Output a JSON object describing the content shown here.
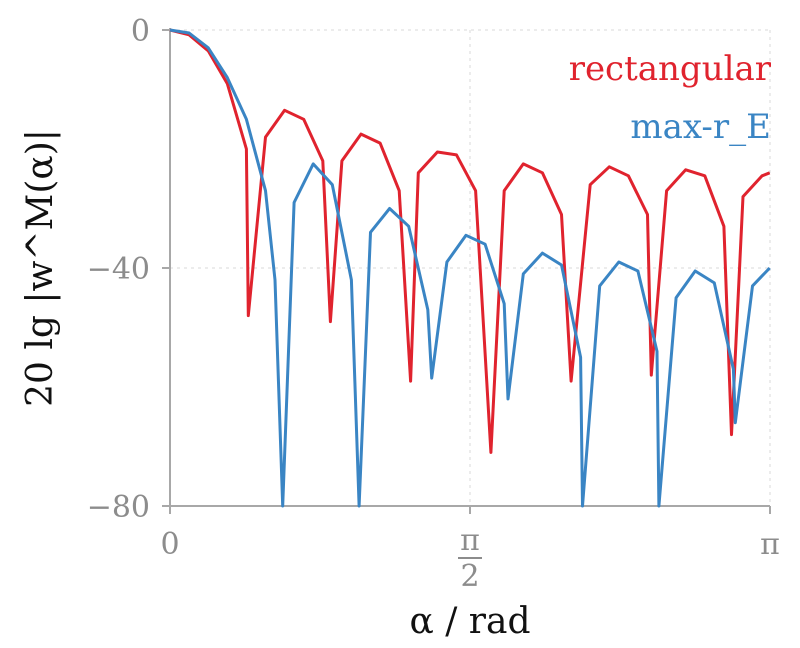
{
  "chart_data": {
    "type": "line",
    "xlabel": "α / rad",
    "ylabel": "20 lg |w^M(α)|",
    "xlim": [
      0,
      3.14159
    ],
    "ylim": [
      -80,
      0
    ],
    "x_ticks": [
      {
        "value": 0,
        "label": "0"
      },
      {
        "value": 1.5708,
        "label_num": "π",
        "label_den": "2"
      },
      {
        "value": 3.14159,
        "label": "π"
      }
    ],
    "y_ticks": [
      {
        "value": 0,
        "label": "0"
      },
      {
        "value": -40,
        "label": "−40"
      },
      {
        "value": -80,
        "label": "−80"
      }
    ],
    "grid": true,
    "legend_position": "top-right",
    "series": [
      {
        "name": "rectangular",
        "color": "#e0232e",
        "x": [
          0,
          0.1,
          0.2,
          0.3,
          0.4,
          0.41,
          0.5,
          0.6,
          0.7,
          0.8,
          0.84,
          0.9,
          1.0,
          1.1,
          1.2,
          1.26,
          1.3,
          1.4,
          1.5,
          1.6,
          1.68,
          1.75,
          1.85,
          1.95,
          2.05,
          2.1,
          2.2,
          2.3,
          2.4,
          2.5,
          2.52,
          2.6,
          2.7,
          2.8,
          2.9,
          2.94,
          3.0,
          3.1,
          3.14
        ],
        "y": [
          0,
          -0.8,
          -3.5,
          -9,
          -20,
          -48,
          -18,
          -13.5,
          -15,
          -22,
          -49,
          -22,
          -17.5,
          -19,
          -27,
          -59,
          -24,
          -20.5,
          -21,
          -27,
          -71,
          -27,
          -22.5,
          -24,
          -31,
          -59,
          -26,
          -23,
          -24.5,
          -31,
          -58,
          -27,
          -23.5,
          -24.5,
          -33,
          -68,
          -28,
          -24.5,
          -24
        ]
      },
      {
        "name": "max-r_E",
        "color": "#3a85c4",
        "x": [
          0,
          0.1,
          0.2,
          0.3,
          0.4,
          0.5,
          0.55,
          0.59,
          0.59,
          0.65,
          0.75,
          0.85,
          0.95,
          0.99,
          0.99,
          1.05,
          1.15,
          1.25,
          1.35,
          1.37,
          1.45,
          1.55,
          1.65,
          1.75,
          1.77,
          1.85,
          1.95,
          2.05,
          2.15,
          2.16,
          2.16,
          2.25,
          2.35,
          2.45,
          2.55,
          2.56,
          2.56,
          2.65,
          2.75,
          2.85,
          2.95,
          2.96,
          3.05,
          3.14
        ],
        "y": [
          0,
          -0.5,
          -3,
          -8,
          -15,
          -27,
          -42,
          -80,
          -80,
          -29,
          -22.5,
          -26,
          -42,
          -80,
          -80,
          -34,
          -30,
          -33,
          -47,
          -58.5,
          -39,
          -34.5,
          -36,
          -46,
          -62,
          -41,
          -37.5,
          -39.5,
          -55,
          -80,
          -80,
          -43,
          -39,
          -40.5,
          -54,
          -80,
          -80,
          -45,
          -40.5,
          -42.5,
          -57,
          -66,
          -43,
          -40
        ]
      }
    ]
  }
}
